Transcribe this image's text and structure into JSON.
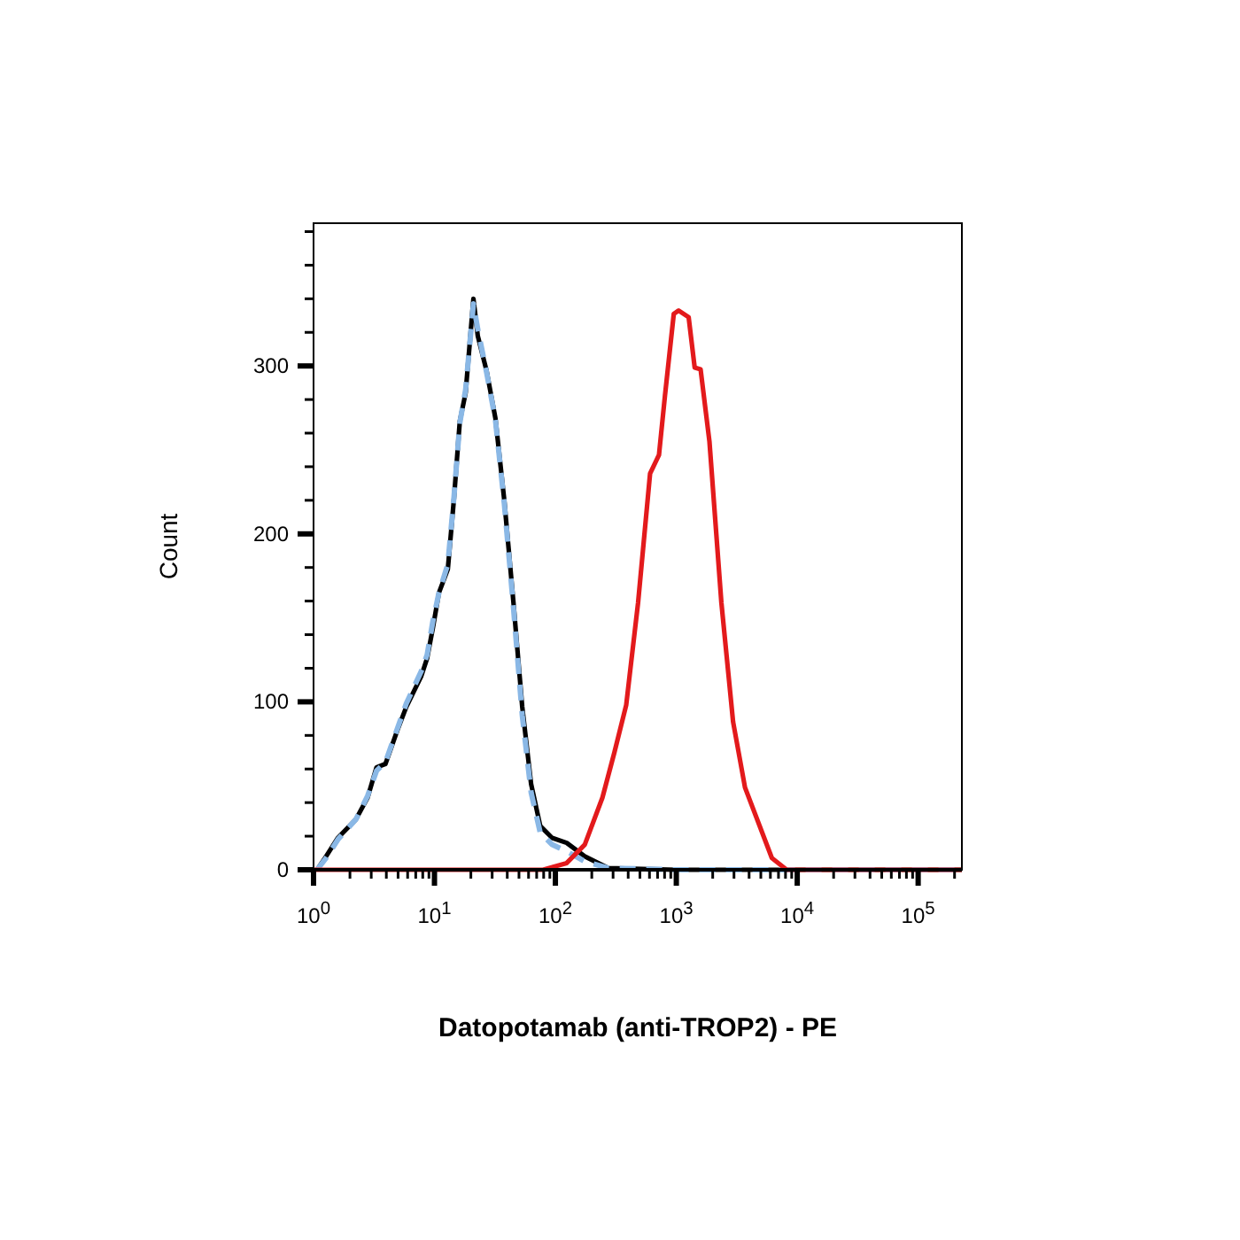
{
  "chart_data": {
    "type": "line",
    "xlabel": "Datopotamab (anti-TROP2) - PE",
    "ylabel": "Count",
    "log": "x",
    "grid": false,
    "marker": "none",
    "xlim": [
      1,
      230000
    ],
    "ylim": [
      0,
      385
    ],
    "xticks": [
      {
        "value": 1,
        "label": "10$^{0}$"
      },
      {
        "value": 2,
        "label": null
      },
      {
        "value": 3,
        "label": null
      },
      {
        "value": 4,
        "label": null
      },
      {
        "value": 5,
        "label": null
      },
      {
        "value": 6,
        "label": null
      },
      {
        "value": 7,
        "label": null
      },
      {
        "value": 8,
        "label": null
      },
      {
        "value": 9,
        "label": null
      },
      {
        "value": 10,
        "label": "10$^{1}$"
      },
      {
        "value": 20,
        "label": null
      },
      {
        "value": 30,
        "label": null
      },
      {
        "value": 40,
        "label": null
      },
      {
        "value": 50,
        "label": null
      },
      {
        "value": 60,
        "label": null
      },
      {
        "value": 70,
        "label": null
      },
      {
        "value": 80,
        "label": null
      },
      {
        "value": 90,
        "label": null
      },
      {
        "value": 100,
        "label": "10$^{2}$"
      },
      {
        "value": 200,
        "label": null
      },
      {
        "value": 300,
        "label": null
      },
      {
        "value": 400,
        "label": null
      },
      {
        "value": 500,
        "label": null
      },
      {
        "value": 600,
        "label": null
      },
      {
        "value": 700,
        "label": null
      },
      {
        "value": 800,
        "label": null
      },
      {
        "value": 900,
        "label": null
      },
      {
        "value": 1000,
        "label": "10$^{3}$"
      },
      {
        "value": 2000,
        "label": null
      },
      {
        "value": 3000,
        "label": null
      },
      {
        "value": 4000,
        "label": null
      },
      {
        "value": 5000,
        "label": null
      },
      {
        "value": 6000,
        "label": null
      },
      {
        "value": 7000,
        "label": null
      },
      {
        "value": 8000,
        "label": null
      },
      {
        "value": 9000,
        "label": null
      },
      {
        "value": 10000,
        "label": "10$^{4}$"
      },
      {
        "value": 20000,
        "label": null
      },
      {
        "value": 30000,
        "label": null
      },
      {
        "value": 40000,
        "label": null
      },
      {
        "value": 50000,
        "label": null
      },
      {
        "value": 60000,
        "label": null
      },
      {
        "value": 70000,
        "label": null
      },
      {
        "value": 80000,
        "label": null
      },
      {
        "value": 90000,
        "label": null
      },
      {
        "value": 100000,
        "label": "10$^{5}$"
      },
      {
        "value": 200000,
        "label": null
      }
    ],
    "yticks": [
      0,
      {
        "value": 20,
        "label": null
      },
      {
        "value": 40,
        "label": null
      },
      {
        "value": 60,
        "label": null
      },
      {
        "value": 80,
        "label": null
      },
      100,
      {
        "value": 120,
        "label": null
      },
      {
        "value": 140,
        "label": null
      },
      {
        "value": 160,
        "label": null
      },
      {
        "value": 180,
        "label": null
      },
      200,
      {
        "value": 220,
        "label": null
      },
      {
        "value": 240,
        "label": null
      },
      {
        "value": 260,
        "label": null
      },
      {
        "value": 280,
        "label": null
      },
      300,
      {
        "value": 320,
        "label": null
      },
      {
        "value": 340,
        "label": null
      },
      {
        "value": 360,
        "label": null
      },
      {
        "value": 380,
        "label": null
      }
    ],
    "series": [
      {
        "color": "#000000",
        "line_style": "solid",
        "x": [
          1.07,
          1.27,
          1.59,
          2.24,
          2.8,
          3.32,
          3.93,
          4.93,
          5.85,
          7.75,
          8.7,
          9.7,
          10.9,
          12.9,
          14.5,
          16.2,
          18.1,
          21,
          22.8,
          27,
          31.9,
          37.8,
          44.9,
          53.2,
          63,
          75,
          94,
          124,
          175,
          274,
          1000,
          10000,
          230000
        ],
        "values": [
          0,
          8,
          19,
          30,
          43,
          61,
          63,
          83,
          97,
          115,
          126,
          144,
          165,
          179,
          221,
          267,
          284,
          340,
          318,
          297,
          269,
          220,
          160,
          97,
          51,
          26,
          19,
          16,
          8,
          1,
          0,
          0,
          0
        ]
      },
      {
        "color": "#8ab8e6",
        "line_style": "dashed",
        "x": [
          1.07,
          1.27,
          1.59,
          2.24,
          2.8,
          3.32,
          3.93,
          4.93,
          5.85,
          7.75,
          8.7,
          9.7,
          10.9,
          12.9,
          14.5,
          16.2,
          18.1,
          21,
          22.8,
          27,
          31.9,
          37.8,
          44.9,
          53.2,
          63,
          75,
          94,
          124,
          175,
          274,
          1000,
          10000,
          230000
        ],
        "values": [
          0,
          7,
          18,
          30,
          44,
          59,
          64,
          84,
          99,
          118,
          128,
          148,
          165,
          182,
          222,
          266,
          286,
          337,
          322,
          296,
          268,
          218,
          157,
          92,
          46,
          22,
          15,
          11,
          5,
          1,
          0,
          0,
          0
        ]
      },
      {
        "color": "#e31a1c",
        "line_style": "solid",
        "x": [
          1,
          79,
          124,
          175,
          245,
          308,
          385,
          483,
          607,
          719,
          805,
          953,
          1045,
          1265,
          1419,
          1588,
          1880,
          2360,
          2950,
          3700,
          6170,
          8180,
          230000
        ],
        "values": [
          0,
          0,
          4,
          15,
          43,
          70,
          98,
          159,
          236,
          247,
          282,
          331,
          333,
          329,
          299,
          298,
          255,
          159,
          88,
          49,
          7,
          0,
          0
        ]
      }
    ]
  }
}
